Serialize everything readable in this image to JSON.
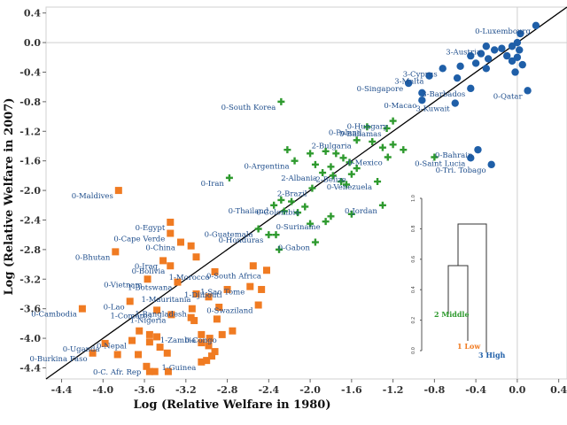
{
  "chart_data": {
    "type": "scatter",
    "title": "",
    "xlabel": "Log (Relative Welfare in 1980)",
    "ylabel": "Log (Relative Welfare in 2007)",
    "xlim": [
      -4.55,
      0.48
    ],
    "ylim": [
      -4.55,
      0.48
    ],
    "xticks": [
      "-4.4",
      "-4.0",
      "-3.6",
      "-3.2",
      "-2.8",
      "-2.4",
      "-2.0",
      "-1.6",
      "-1.2",
      "-0.8",
      "-0.4",
      "0.0",
      "0.4"
    ],
    "yticks": [
      "0.4",
      "0.0",
      "-0.4",
      "-0.8",
      "-1.2",
      "-1.6",
      "-2.0",
      "-2.4",
      "-2.8",
      "-3.2",
      "-3.6",
      "-4.0",
      "-4.4"
    ],
    "reference_line": "45-degree",
    "colors": {
      "high": "#1f5fa8",
      "middle": "#2e9a2e",
      "low": "#f07b22",
      "label": "#1f4e8c"
    },
    "series": [
      {
        "name": "1 Low",
        "marker": "square",
        "color": "#f07b22",
        "points": [
          {
            "x": -3.85,
            "y": -2.0,
            "label": "0-Maldives"
          },
          {
            "x": -3.35,
            "y": -2.43,
            "label": "0-Egypt"
          },
          {
            "x": -3.35,
            "y": -2.58,
            "label": "0-Cape Verde"
          },
          {
            "x": -3.25,
            "y": -2.7,
            "label": "0-China"
          },
          {
            "x": -3.15,
            "y": -2.75,
            "label": ""
          },
          {
            "x": -3.88,
            "y": -2.83,
            "label": "0-Bhutan"
          },
          {
            "x": -3.42,
            "y": -2.95,
            "label": "0-Iraq"
          },
          {
            "x": -3.35,
            "y": -3.02,
            "label": "0-Bolivia"
          },
          {
            "x": -3.1,
            "y": -2.9,
            "label": ""
          },
          {
            "x": -2.92,
            "y": -3.1,
            "label": "1-Morocco"
          },
          {
            "x": -2.55,
            "y": -3.02,
            "label": ""
          },
          {
            "x": -2.42,
            "y": -3.08,
            "label": "0-South Africa"
          },
          {
            "x": -3.57,
            "y": -3.2,
            "label": "0-Vietnam"
          },
          {
            "x": -3.28,
            "y": -3.24,
            "label": "1-Botswana"
          },
          {
            "x": -2.58,
            "y": -3.3,
            "label": "1-Sao Tome"
          },
          {
            "x": -2.8,
            "y": -3.34,
            "label": "1-Djibouti"
          },
          {
            "x": -2.47,
            "y": -3.34,
            "label": ""
          },
          {
            "x": -4.2,
            "y": -3.6,
            "label": "0-Cambodia"
          },
          {
            "x": -3.74,
            "y": -3.5,
            "label": "0-Lao"
          },
          {
            "x": -3.1,
            "y": -3.4,
            "label": "1-Mauritania"
          },
          {
            "x": -2.98,
            "y": -3.44,
            "label": ""
          },
          {
            "x": -3.48,
            "y": -3.62,
            "label": "1-Comoros"
          },
          {
            "x": -3.14,
            "y": -3.6,
            "label": "1-Bangladesh"
          },
          {
            "x": -3.34,
            "y": -3.68,
            "label": "1-Nigeria"
          },
          {
            "x": -3.15,
            "y": -3.72,
            "label": ""
          },
          {
            "x": -3.12,
            "y": -3.76,
            "label": ""
          },
          {
            "x": -2.88,
            "y": -3.58,
            "label": ""
          },
          {
            "x": -2.5,
            "y": -3.55,
            "label": "0-Swaziland"
          },
          {
            "x": -2.9,
            "y": -3.74,
            "label": ""
          },
          {
            "x": -3.65,
            "y": -3.9,
            "label": ""
          },
          {
            "x": -3.55,
            "y": -3.95,
            "label": ""
          },
          {
            "x": -3.48,
            "y": -3.98,
            "label": ""
          },
          {
            "x": -3.05,
            "y": -3.95,
            "label": "1-Zambia"
          },
          {
            "x": -2.97,
            "y": -4.0,
            "label": ""
          },
          {
            "x": -2.85,
            "y": -3.95,
            "label": "0-Congo"
          },
          {
            "x": -2.75,
            "y": -3.9,
            "label": ""
          },
          {
            "x": -3.98,
            "y": -4.07,
            "label": "0-Uganda"
          },
          {
            "x": -3.72,
            "y": -4.03,
            "label": "0-Nepal"
          },
          {
            "x": -3.55,
            "y": -4.05,
            "label": ""
          },
          {
            "x": -3.45,
            "y": -4.12,
            "label": ""
          },
          {
            "x": -3.38,
            "y": -4.2,
            "label": ""
          },
          {
            "x": -3.05,
            "y": -4.06,
            "label": ""
          },
          {
            "x": -2.98,
            "y": -4.1,
            "label": ""
          },
          {
            "x": -2.92,
            "y": -4.18,
            "label": ""
          },
          {
            "x": -2.95,
            "y": -4.24,
            "label": ""
          },
          {
            "x": -4.1,
            "y": -4.2,
            "label": "0-Burkina Faso"
          },
          {
            "x": -3.86,
            "y": -4.22,
            "label": ""
          },
          {
            "x": -3.66,
            "y": -4.22,
            "label": ""
          },
          {
            "x": -3.58,
            "y": -4.38,
            "label": "0-C. Afr. Rep"
          },
          {
            "x": -3.55,
            "y": -4.45,
            "label": ""
          },
          {
            "x": -3.5,
            "y": -4.45,
            "label": ""
          },
          {
            "x": -3.37,
            "y": -4.45,
            "label": ""
          },
          {
            "x": -3.05,
            "y": -4.32,
            "label": "1-Guinea"
          },
          {
            "x": -3.0,
            "y": -4.3,
            "label": ""
          }
        ]
      },
      {
        "name": "2 Middle",
        "marker": "plus",
        "color": "#2e9a2e",
        "points": [
          {
            "x": -2.28,
            "y": -0.8,
            "label": "0-South Korea"
          },
          {
            "x": -1.45,
            "y": -1.14,
            "label": "0-Poland"
          },
          {
            "x": -1.2,
            "y": -1.06,
            "label": "0-Hungary"
          },
          {
            "x": -1.26,
            "y": -1.16,
            "label": "0-Bahamas"
          },
          {
            "x": -1.55,
            "y": -1.32,
            "label": "2-Bulgaria"
          },
          {
            "x": -1.4,
            "y": -1.34,
            "label": ""
          },
          {
            "x": -1.3,
            "y": -1.42,
            "label": ""
          },
          {
            "x": -1.2,
            "y": -1.38,
            "label": ""
          },
          {
            "x": -1.1,
            "y": -1.45,
            "label": ""
          },
          {
            "x": -1.25,
            "y": -1.55,
            "label": "0-Mexico"
          },
          {
            "x": -2.22,
            "y": -1.45,
            "label": ""
          },
          {
            "x": -2.0,
            "y": -1.5,
            "label": ""
          },
          {
            "x": -1.85,
            "y": -1.47,
            "label": ""
          },
          {
            "x": -1.75,
            "y": -1.5,
            "label": ""
          },
          {
            "x": -1.68,
            "y": -1.56,
            "label": ""
          },
          {
            "x": -2.15,
            "y": -1.6,
            "label": "0-Argentina"
          },
          {
            "x": -1.95,
            "y": -1.65,
            "label": ""
          },
          {
            "x": -1.8,
            "y": -1.68,
            "label": ""
          },
          {
            "x": -1.62,
            "y": -1.62,
            "label": ""
          },
          {
            "x": -1.55,
            "y": -1.7,
            "label": ""
          },
          {
            "x": -1.88,
            "y": -1.76,
            "label": "2-Albania"
          },
          {
            "x": -1.78,
            "y": -1.8,
            "label": ""
          },
          {
            "x": -1.6,
            "y": -1.78,
            "label": "2-Belize"
          },
          {
            "x": -1.7,
            "y": -1.88,
            "label": ""
          },
          {
            "x": -1.35,
            "y": -1.88,
            "label": "0-Venezuela"
          },
          {
            "x": -1.65,
            "y": -1.92,
            "label": ""
          },
          {
            "x": -1.98,
            "y": -1.97,
            "label": "2-Brazil"
          },
          {
            "x": -2.78,
            "y": -1.83,
            "label": "0-Iran"
          },
          {
            "x": -2.35,
            "y": -2.2,
            "label": "0-Thailand"
          },
          {
            "x": -2.28,
            "y": -2.13,
            "label": ""
          },
          {
            "x": -2.18,
            "y": -2.15,
            "label": ""
          },
          {
            "x": -2.05,
            "y": -2.22,
            "label": "0-Colombia"
          },
          {
            "x": -2.25,
            "y": -2.28,
            "label": ""
          },
          {
            "x": -2.12,
            "y": -2.3,
            "label": ""
          },
          {
            "x": -1.3,
            "y": -2.2,
            "label": "0-Jordan"
          },
          {
            "x": -1.6,
            "y": -2.32,
            "label": ""
          },
          {
            "x": -1.8,
            "y": -2.35,
            "label": ""
          },
          {
            "x": -1.85,
            "y": -2.42,
            "label": "0-Suriname"
          },
          {
            "x": -2.0,
            "y": -2.45,
            "label": ""
          },
          {
            "x": -2.5,
            "y": -2.52,
            "label": "0-Guatemala"
          },
          {
            "x": -2.4,
            "y": -2.6,
            "label": "0-Honduras"
          },
          {
            "x": -2.33,
            "y": -2.6,
            "label": ""
          },
          {
            "x": -1.95,
            "y": -2.7,
            "label": "0-Gabon"
          },
          {
            "x": -2.3,
            "y": -2.8,
            "label": ""
          },
          {
            "x": -0.8,
            "y": -1.55,
            "label": ""
          }
        ]
      },
      {
        "name": "3 High",
        "marker": "circle",
        "color": "#1f5fa8",
        "points": [
          {
            "x": 0.18,
            "y": 0.23,
            "label": "0-Luxembourg"
          },
          {
            "x": 0.03,
            "y": 0.12,
            "label": ""
          },
          {
            "x": -0.3,
            "y": -0.05,
            "label": "3-Austria"
          },
          {
            "x": -0.22,
            "y": -0.1,
            "label": ""
          },
          {
            "x": -0.15,
            "y": -0.08,
            "label": ""
          },
          {
            "x": -0.05,
            "y": -0.05,
            "label": ""
          },
          {
            "x": -0.1,
            "y": -0.18,
            "label": ""
          },
          {
            "x": -0.35,
            "y": -0.15,
            "label": ""
          },
          {
            "x": -0.28,
            "y": -0.22,
            "label": ""
          },
          {
            "x": -0.45,
            "y": -0.18,
            "label": ""
          },
          {
            "x": -0.4,
            "y": -0.28,
            "label": ""
          },
          {
            "x": -0.3,
            "y": -0.35,
            "label": ""
          },
          {
            "x": -0.55,
            "y": -0.32,
            "label": ""
          },
          {
            "x": 0.0,
            "y": 0.0,
            "label": ""
          },
          {
            "x": 0.02,
            "y": -0.1,
            "label": ""
          },
          {
            "x": 0.0,
            "y": -0.2,
            "label": ""
          },
          {
            "x": -0.05,
            "y": -0.25,
            "label": ""
          },
          {
            "x": 0.05,
            "y": -0.3,
            "label": ""
          },
          {
            "x": -0.02,
            "y": -0.4,
            "label": ""
          },
          {
            "x": -0.72,
            "y": -0.35,
            "label": "3-Cyprus"
          },
          {
            "x": -0.85,
            "y": -0.45,
            "label": "3-Malta"
          },
          {
            "x": -0.58,
            "y": -0.48,
            "label": ""
          },
          {
            "x": -0.45,
            "y": -0.62,
            "label": "3-Barbados"
          },
          {
            "x": -1.05,
            "y": -0.55,
            "label": "0-Singapore"
          },
          {
            "x": -0.92,
            "y": -0.68,
            "label": ""
          },
          {
            "x": -0.92,
            "y": -0.78,
            "label": "0-Macao"
          },
          {
            "x": -0.6,
            "y": -0.82,
            "label": "3-Kuwait"
          },
          {
            "x": 0.1,
            "y": -0.65,
            "label": "0-Qatar"
          },
          {
            "x": -0.38,
            "y": -1.45,
            "label": "0-Bahrain"
          },
          {
            "x": -0.45,
            "y": -1.56,
            "label": "0-Saint Lucia"
          },
          {
            "x": -0.25,
            "y": -1.65,
            "label": "0-Tri. Tobago"
          }
        ]
      }
    ],
    "dendrogram": {
      "y_ticks": [
        "1.0",
        "0.8",
        "0.6",
        "0.4",
        "0.2",
        "0.0"
      ],
      "labels": [
        {
          "text": "2 Middle",
          "color": "#2e9a2e"
        },
        {
          "text": "1 Low",
          "color": "#f07b22"
        },
        {
          "text": "3 High",
          "color": "#1f5fa8"
        }
      ]
    }
  }
}
